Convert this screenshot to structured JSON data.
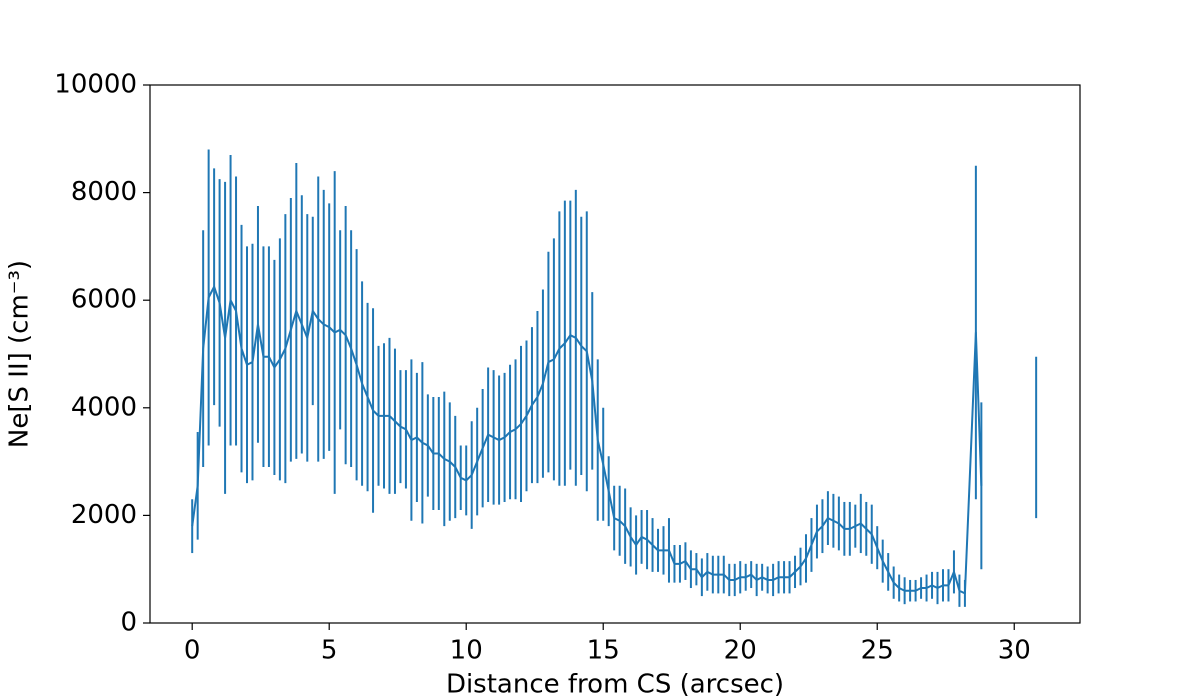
{
  "chart_data": {
    "type": "errorbar-line",
    "xlabel": "Distance from CS (arcsec)",
    "ylabel": "Ne[S II] (cm⁻³)",
    "color": "#1f77b4",
    "xlim": [
      -1.54,
      32.4
    ],
    "ylim": [
      0,
      10000
    ],
    "xticks": [
      0,
      5,
      10,
      15,
      20,
      25,
      30
    ],
    "yticks": [
      0,
      2000,
      4000,
      6000,
      8000,
      10000
    ],
    "x": [
      0,
      0.2,
      0.4,
      0.6,
      0.8,
      1.0,
      1.2,
      1.4,
      1.6,
      1.8,
      2.0,
      2.2,
      2.4,
      2.6,
      2.8,
      3.0,
      3.2,
      3.4,
      3.6,
      3.8,
      4.0,
      4.2,
      4.4,
      4.6,
      4.8,
      5.0,
      5.2,
      5.4,
      5.6,
      5.8,
      6.0,
      6.2,
      6.4,
      6.6,
      6.8,
      7.0,
      7.2,
      7.4,
      7.6,
      7.8,
      8.0,
      8.2,
      8.4,
      8.6,
      8.8,
      9.0,
      9.2,
      9.4,
      9.6,
      9.8,
      10.0,
      10.2,
      10.4,
      10.6,
      10.8,
      11.0,
      11.2,
      11.4,
      11.6,
      11.8,
      12.0,
      12.2,
      12.4,
      12.6,
      12.8,
      13.0,
      13.2,
      13.4,
      13.6,
      13.8,
      14.0,
      14.2,
      14.4,
      14.6,
      14.8,
      15.0,
      15.2,
      15.4,
      15.6,
      15.8,
      16.0,
      16.2,
      16.4,
      16.6,
      16.8,
      17.0,
      17.2,
      17.4,
      17.6,
      17.8,
      18.0,
      18.2,
      18.4,
      18.6,
      18.8,
      19.0,
      19.2,
      19.4,
      19.6,
      19.8,
      20.0,
      20.2,
      20.4,
      20.6,
      20.8,
      21.0,
      21.2,
      21.4,
      21.6,
      21.8,
      22.0,
      22.2,
      22.4,
      22.6,
      22.8,
      23.0,
      23.2,
      23.4,
      23.6,
      23.8,
      24.0,
      24.2,
      24.4,
      24.6,
      24.8,
      25.0,
      25.2,
      25.4,
      25.6,
      25.8,
      26.0,
      26.2,
      26.4,
      26.6,
      26.8,
      27.0,
      27.2,
      27.4,
      27.6,
      27.8,
      28.0,
      28.2,
      28.6,
      28.8,
      29.8,
      30.8
    ],
    "values": [
      1800,
      2550,
      5100,
      6050,
      6250,
      5950,
      5300,
      6000,
      5800,
      5100,
      4800,
      4850,
      5550,
      4950,
      4950,
      4750,
      4900,
      5100,
      5450,
      5800,
      5550,
      5300,
      5800,
      5650,
      5550,
      5500,
      5400,
      5450,
      5350,
      5100,
      4800,
      4450,
      4200,
      3950,
      3850,
      3850,
      3850,
      3750,
      3650,
      3600,
      3400,
      3450,
      3350,
      3300,
      3150,
      3150,
      3050,
      3000,
      2900,
      2700,
      2650,
      2750,
      3000,
      3250,
      3500,
      3450,
      3400,
      3450,
      3550,
      3600,
      3700,
      3850,
      4050,
      4200,
      4450,
      4850,
      4900,
      5100,
      5200,
      5350,
      5300,
      5150,
      5050,
      4500,
      3400,
      2950,
      2450,
      1950,
      1900,
      1800,
      1600,
      1450,
      1600,
      1550,
      1450,
      1350,
      1350,
      1350,
      1100,
      1100,
      1150,
      1000,
      1000,
      850,
      950,
      900,
      900,
      900,
      800,
      800,
      850,
      850,
      900,
      800,
      850,
      800,
      800,
      850,
      850,
      850,
      950,
      1050,
      1200,
      1450,
      1700,
      1800,
      1950,
      1900,
      1850,
      1750,
      1750,
      1800,
      1850,
      1750,
      1650,
      1400,
      1150,
      950,
      750,
      650,
      600,
      600,
      600,
      650,
      650,
      700,
      650,
      700,
      700,
      950,
      600,
      550,
      5400,
      2550,
      null,
      3450
    ],
    "errors": [
      500,
      1000,
      2200,
      2750,
      2200,
      2300,
      2900,
      2700,
      2500,
      2300,
      2200,
      2200,
      2200,
      2050,
      2050,
      2000,
      2250,
      2500,
      2450,
      2750,
      2400,
      2300,
      1750,
      2650,
      2500,
      2300,
      3000,
      1850,
      2400,
      2200,
      2150,
      1900,
      1750,
      1900,
      1300,
      1350,
      1450,
      1350,
      1050,
      1100,
      1500,
      1200,
      1500,
      950,
      1050,
      1050,
      1250,
      1100,
      950,
      600,
      650,
      1000,
      1000,
      1100,
      1250,
      1250,
      1200,
      1200,
      1250,
      1300,
      1450,
      1400,
      1450,
      1600,
      1750,
      2050,
      2250,
      2550,
      2650,
      2500,
      2750,
      2400,
      2600,
      1650,
      1500,
      1050,
      650,
      600,
      650,
      700,
      550,
      550,
      500,
      550,
      500,
      400,
      450,
      600,
      350,
      350,
      350,
      350,
      300,
      350,
      350,
      350,
      350,
      350,
      300,
      300,
      300,
      250,
      250,
      300,
      250,
      250,
      300,
      300,
      300,
      300,
      300,
      350,
      450,
      500,
      500,
      500,
      500,
      500,
      500,
      500,
      500,
      400,
      550,
      500,
      550,
      400,
      400,
      350,
      300,
      250,
      250,
      200,
      200,
      200,
      250,
      250,
      300,
      300,
      300,
      400,
      300,
      250,
      3100,
      1550,
      null,
      1500
    ]
  }
}
